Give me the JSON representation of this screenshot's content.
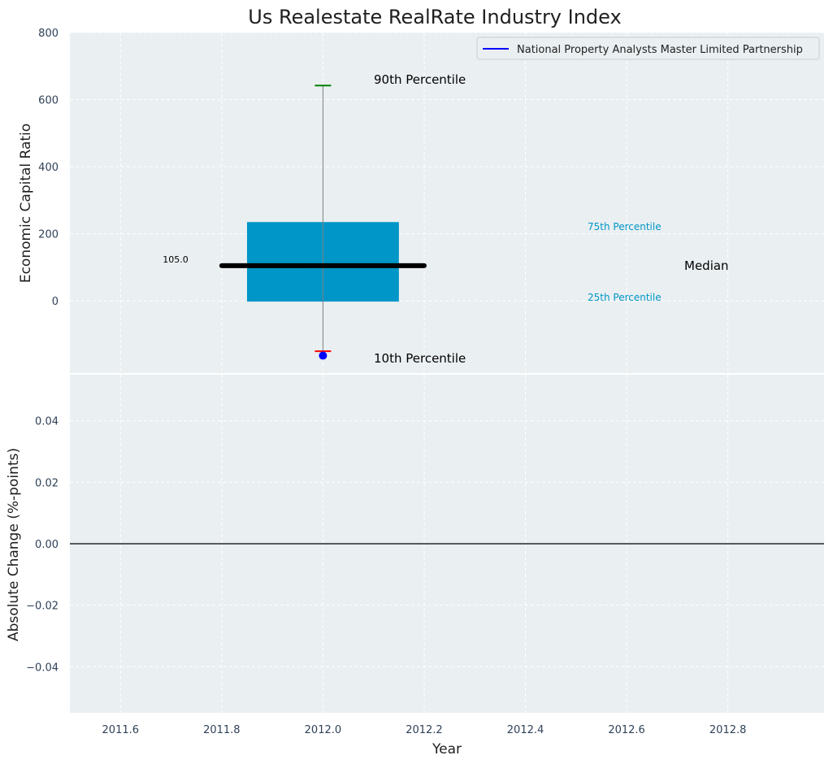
{
  "chart_data": [
    {
      "type": "box",
      "title": "Us Realestate RealRate Industry Index",
      "ylabel": "Economic Capital Ratio",
      "ylim": [
        -215,
        800
      ],
      "yticks": [
        0,
        200,
        400,
        600,
        800
      ],
      "xlim": [
        2011.5,
        2012.99
      ],
      "grid": true,
      "legend": {
        "position": "upper right",
        "entries": [
          "National Property Analysts Master Limited Partnership"
        ],
        "colors": [
          "#0000ff"
        ]
      },
      "box": {
        "x": 2012.0,
        "p10": -150,
        "p25": -2,
        "median": 105,
        "p75": 235,
        "p90": 642,
        "median_label": "105.0"
      },
      "company_point": {
        "x": 2012.0,
        "y": -163,
        "color": "#0000ff"
      },
      "annotations": {
        "p90": "90th Percentile",
        "p10": "10th Percentile",
        "p75": "75th Percentile",
        "p25": "25th Percentile",
        "median": "Median"
      },
      "colors": {
        "box": "#0096c7",
        "median": "#000000",
        "p90_cap": "#008000",
        "p10_cap": "#ff0000",
        "whisker": "#7f7f7f",
        "background": "#eaeff1"
      }
    },
    {
      "type": "line",
      "xlabel": "Year",
      "ylabel": "Absolute Change (%-points)",
      "ylim": [
        -0.055,
        0.055
      ],
      "yticks": [
        -0.04,
        -0.02,
        0.0,
        0.02,
        0.04
      ],
      "ytick_labels": [
        "−0.04",
        "−0.02",
        "0.00",
        "0.02",
        "0.04"
      ],
      "xlim": [
        2011.5,
        2012.99
      ],
      "xticks": [
        2011.6,
        2011.8,
        2012.0,
        2012.2,
        2012.4,
        2012.6,
        2012.8
      ],
      "xtick_labels": [
        "2011.6",
        "2011.8",
        "2012.0",
        "2012.2",
        "2012.4",
        "2012.6",
        "2012.8"
      ],
      "hline": 0,
      "grid": true
    }
  ]
}
